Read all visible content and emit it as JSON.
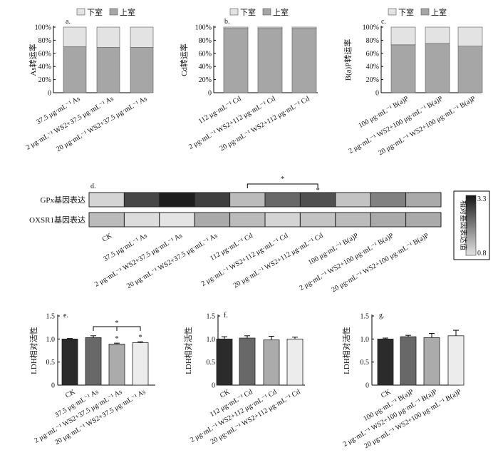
{
  "chart_data": [
    {
      "id": "a",
      "panel_label": "a.",
      "type": "bar",
      "stacked": true,
      "ylabel": "As转运率",
      "ylim": [
        0,
        100
      ],
      "yticks": [
        "0",
        "20%",
        "40%",
        "60%",
        "80%",
        "100%"
      ],
      "legend": [
        {
          "name": "下室",
          "color": "#e3e3e3"
        },
        {
          "name": "上室",
          "color": "#a6a6a6"
        }
      ],
      "categories": [
        "37.5 μg·mL⁻¹ As",
        "2 μg·mL⁻¹ WS2+37.5 μg·mL⁻¹ As",
        "20 μg·mL⁻¹ WS2+37.5 μg·mL⁻¹ As"
      ],
      "series": [
        {
          "name": "上室",
          "values": [
            70,
            69,
            69
          ]
        },
        {
          "name": "下室",
          "values": [
            30,
            31,
            31
          ]
        }
      ]
    },
    {
      "id": "b",
      "panel_label": "b.",
      "type": "bar",
      "stacked": true,
      "ylabel": "Cd转运率",
      "ylim": [
        0,
        100
      ],
      "yticks": [
        "0",
        "20%",
        "40%",
        "60%",
        "80%",
        "100%"
      ],
      "legend": [
        {
          "name": "下室",
          "color": "#e3e3e3"
        },
        {
          "name": "上室",
          "color": "#a6a6a6"
        }
      ],
      "categories": [
        "112 μg·mL⁻¹ Cd",
        "2 μg·mL⁻¹ WS2+112 μg·mL⁻¹ Cd",
        "20 μg·mL⁻¹ WS2+112 μg·mL⁻¹ Cd"
      ],
      "series": [
        {
          "name": "上室",
          "values": [
            98,
            98,
            98
          ]
        },
        {
          "name": "下室",
          "values": [
            2,
            2,
            2
          ]
        }
      ]
    },
    {
      "id": "c",
      "panel_label": "c.",
      "type": "bar",
      "stacked": true,
      "ylabel": "B(a)P转运率",
      "ylim": [
        0,
        100
      ],
      "yticks": [
        "0",
        "20%",
        "40%",
        "60%",
        "80%",
        "100%"
      ],
      "legend": [
        {
          "name": "下室",
          "color": "#e3e3e3"
        },
        {
          "name": "上室",
          "color": "#a6a6a6"
        }
      ],
      "categories": [
        "100 μg·mL⁻¹ B(a)P",
        "2 μg·mL⁻¹ WS2+100 μg·mL⁻¹ B(a)P",
        "20 μg·mL⁻¹ WS2+100 μg·mL⁻¹ B(a)P"
      ],
      "series": [
        {
          "name": "上室",
          "values": [
            73,
            75,
            71
          ]
        },
        {
          "name": "下室",
          "values": [
            27,
            25,
            29
          ]
        }
      ]
    },
    {
      "id": "d",
      "panel_label": "d.",
      "type": "heatmap",
      "rows": [
        "GPx基因表达",
        "OXSR1基因表达"
      ],
      "columns": [
        "CK",
        "37.5 μg·mL⁻¹ As",
        "2 μg·mL⁻¹ WS2+37.5 μg·mL⁻¹ As",
        "20 μg·mL⁻¹ WS2+37.5 μg·mL⁻¹ As",
        "112 μg·mL⁻¹ Cd",
        "2 μg·mL⁻¹ WS2+112 μg·mL⁻¹ Cd",
        "20 μg·mL⁻¹ WS2+112 μg·mL⁻¹ Cd",
        "100 μg·mL⁻¹ B(a)P",
        "2 μg·mL⁻¹ WS2+100 μg·mL⁻¹ B(a)P",
        "20 μg·mL⁻¹ WS2+100 μg·mL⁻¹ B(a)P"
      ],
      "values": [
        [
          1.0,
          2.7,
          3.2,
          2.8,
          1.3,
          2.3,
          2.6,
          1.2,
          2.0,
          1.5
        ],
        [
          1.3,
          0.9,
          0.8,
          1.5,
          1.3,
          1.0,
          1.2,
          1.3,
          1.5,
          1.5
        ]
      ],
      "colorbar": {
        "label": "相对基因表达值",
        "min": 0.8,
        "max": 3.3,
        "min_label": "0.8",
        "max_label": "3.3"
      },
      "annotations": {
        "bracket_star": "*",
        "cell_star": "*"
      }
    },
    {
      "id": "e",
      "panel_label": "e.",
      "type": "bar",
      "ylabel": "LDH相对活性",
      "ylim": [
        0,
        1.5
      ],
      "yticks": [
        "0",
        "0.5",
        "1.0",
        "1.5"
      ],
      "categories": [
        "CK",
        "37.5 μg·mL⁻¹ As",
        "2 μg·mL⁻¹ WS2+37.5 μg·mL⁻¹ As",
        "20 μg·mL⁻¹ WS2+37.5 μg·mL⁻¹ As"
      ],
      "values": [
        1.0,
        1.03,
        0.89,
        0.92
      ],
      "errors": [
        0.01,
        0.04,
        0.02,
        0.02
      ],
      "colors": [
        "#2b2b2b",
        "#686868",
        "#ababab",
        "#ececec"
      ],
      "annotations": {
        "bar_stars": [
          "",
          "",
          "*",
          "*"
        ],
        "bracket_star": "*"
      }
    },
    {
      "id": "f",
      "panel_label": "f.",
      "type": "bar",
      "ylabel": "LDH相对活性",
      "ylim": [
        0,
        1.5
      ],
      "yticks": [
        "0",
        "0.5",
        "1.0",
        "1.5"
      ],
      "categories": [
        "CK",
        "112 μg·mL⁻¹ Cd",
        "2 μg·mL⁻¹ WS2+112 μg·mL⁻¹ Cd",
        "20 μg·mL⁻¹ WS2+112 μg·mL⁻¹ Cd"
      ],
      "values": [
        1.0,
        1.02,
        0.98,
        1.0
      ],
      "errors": [
        0.05,
        0.05,
        0.08,
        0.04
      ],
      "colors": [
        "#2b2b2b",
        "#686868",
        "#ababab",
        "#ececec"
      ]
    },
    {
      "id": "g",
      "panel_label": "g.",
      "type": "bar",
      "ylabel": "LDH相对活性",
      "ylim": [
        0,
        1.5
      ],
      "yticks": [
        "0",
        "0.5",
        "1.0",
        "1.5"
      ],
      "categories": [
        "CK",
        "100 μg·mL⁻¹ B(a)P",
        "2 μg·mL⁻¹ WS2+100 μg·mL⁻¹ B(a)P",
        "20 μg·mL⁻¹ WS2+100 μg·mL⁻¹ B(a)P"
      ],
      "values": [
        1.0,
        1.05,
        1.03,
        1.07
      ],
      "errors": [
        0.02,
        0.03,
        0.09,
        0.12
      ],
      "colors": [
        "#2b2b2b",
        "#686868",
        "#ababab",
        "#ececec"
      ]
    }
  ]
}
